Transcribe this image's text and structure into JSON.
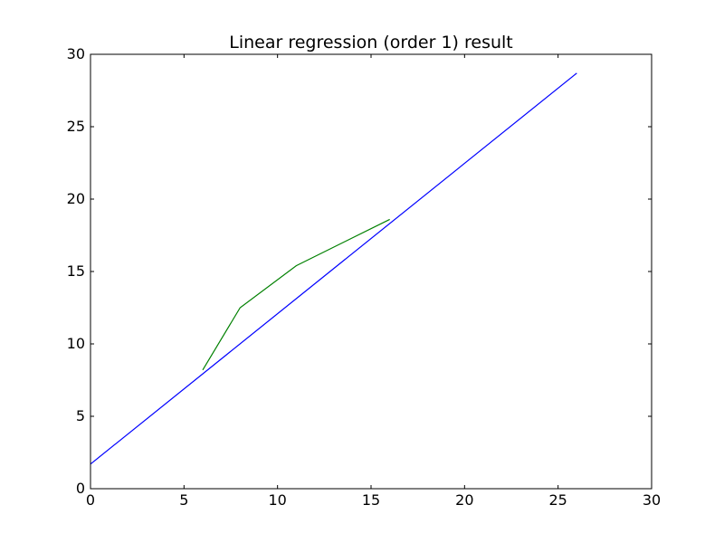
{
  "chart_data": {
    "type": "line",
    "title": "Linear regression (order 1) result",
    "xlabel": "",
    "ylabel": "",
    "xlim": [
      0,
      30
    ],
    "ylim": [
      0,
      30
    ],
    "xticks": [
      0,
      5,
      10,
      15,
      20,
      25,
      30
    ],
    "yticks": [
      0,
      5,
      10,
      15,
      20,
      25,
      30
    ],
    "grid": false,
    "series": [
      {
        "color": "#0000ff",
        "x": [
          0,
          26
        ],
        "y": [
          1.7,
          28.7
        ]
      },
      {
        "color": "#008000",
        "x": [
          6,
          8,
          11,
          16
        ],
        "y": [
          8.2,
          12.5,
          15.4,
          18.6
        ]
      }
    ]
  }
}
